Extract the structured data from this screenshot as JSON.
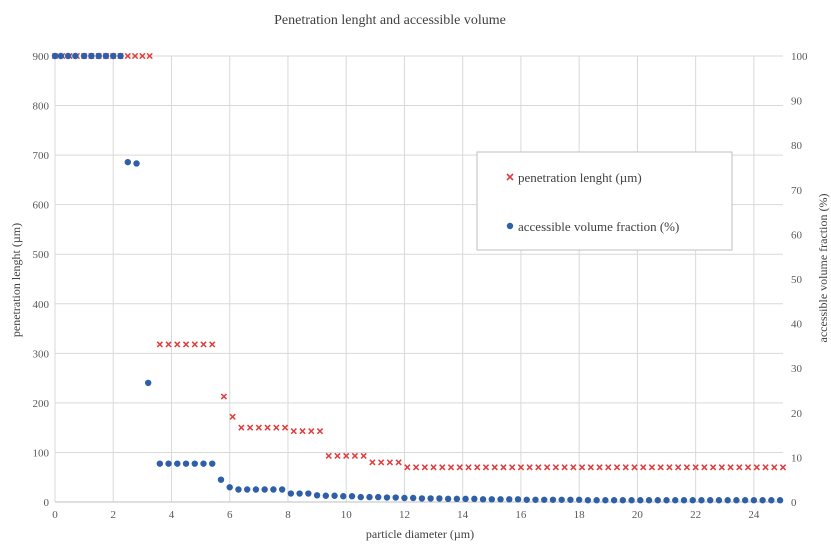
{
  "chart_data": {
    "type": "scatter",
    "title": "Penetration lenght and accessible volume",
    "xlabel": "particle diameter (µm)",
    "ylabel_left": "penetration lenght (µm)",
    "ylabel_right": "accessible volume fraction (%)",
    "xlim": [
      0,
      25
    ],
    "ylim_left": [
      0,
      900
    ],
    "ylim_right": [
      0,
      100
    ],
    "x_ticks": [
      0,
      2,
      4,
      6,
      8,
      10,
      12,
      14,
      16,
      18,
      20,
      22,
      24
    ],
    "y_left_ticks": [
      0,
      100,
      200,
      300,
      400,
      500,
      600,
      700,
      800,
      900
    ],
    "y_right_ticks": [
      0,
      10,
      20,
      30,
      40,
      50,
      60,
      70,
      80,
      90,
      100
    ],
    "grid": true,
    "legend_position": "upper-right",
    "series": [
      {
        "name": "penetration lenght (µm)",
        "marker": "x",
        "color": "#e03c3c",
        "axis": "left",
        "x": [
          0.0,
          0.25,
          0.5,
          0.75,
          1.0,
          1.25,
          1.5,
          1.75,
          2.0,
          2.25,
          2.5,
          2.75,
          3.0,
          3.25,
          3.6,
          3.9,
          4.2,
          4.5,
          4.8,
          5.1,
          5.4,
          5.8,
          6.1,
          6.4,
          6.7,
          7.0,
          7.3,
          7.6,
          7.9,
          8.2,
          8.5,
          8.8,
          9.1,
          9.4,
          9.7,
          10.0,
          10.3,
          10.6,
          10.9,
          11.2,
          11.5,
          11.8,
          12.1,
          12.4,
          12.7,
          13.0,
          13.3,
          13.6,
          13.9,
          14.2,
          14.5,
          14.8,
          15.1,
          15.4,
          15.7,
          16.0,
          16.3,
          16.6,
          16.9,
          17.2,
          17.5,
          17.8,
          18.1,
          18.4,
          18.7,
          19.0,
          19.3,
          19.6,
          19.9,
          20.2,
          20.5,
          20.8,
          21.1,
          21.4,
          21.7,
          22.0,
          22.3,
          22.6,
          22.9,
          23.2,
          23.5,
          23.8,
          24.1,
          24.4,
          24.7,
          25.0
        ],
        "y": [
          900,
          900,
          900,
          900,
          900,
          900,
          900,
          900,
          900,
          900,
          900,
          900,
          900,
          900,
          318,
          318,
          318,
          318,
          318,
          318,
          318,
          213,
          172,
          150,
          150,
          150,
          150,
          150,
          150,
          143,
          143,
          143,
          143,
          93,
          93,
          93,
          93,
          93,
          80,
          80,
          80,
          80,
          70,
          70,
          70,
          70,
          70,
          70,
          70,
          70,
          70,
          70,
          70,
          70,
          70,
          70,
          70,
          70,
          70,
          70,
          70,
          70,
          70,
          70,
          70,
          70,
          70,
          70,
          70,
          70,
          70,
          70,
          70,
          70,
          70,
          70,
          70,
          70,
          70,
          70,
          70,
          70,
          70,
          70,
          70,
          70
        ]
      },
      {
        "name": "accessible volume fraction (%)",
        "marker": "circle",
        "color": "#2e5fa8",
        "axis": "right",
        "x": [
          0.0,
          0.2,
          0.45,
          0.7,
          1.0,
          1.25,
          1.5,
          1.75,
          2.0,
          2.25,
          2.5,
          2.8,
          3.2,
          3.6,
          3.9,
          4.2,
          4.5,
          4.8,
          5.1,
          5.4,
          5.7,
          6.0,
          6.3,
          6.6,
          6.9,
          7.2,
          7.5,
          7.8,
          8.1,
          8.4,
          8.7,
          9.0,
          9.3,
          9.6,
          9.9,
          10.2,
          10.5,
          10.8,
          11.1,
          11.4,
          11.7,
          12.0,
          12.3,
          12.6,
          12.9,
          13.2,
          13.5,
          13.8,
          14.1,
          14.4,
          14.7,
          15.0,
          15.3,
          15.6,
          15.9,
          16.2,
          16.5,
          16.8,
          17.1,
          17.4,
          17.7,
          18.0,
          18.3,
          18.6,
          18.9,
          19.2,
          19.5,
          19.8,
          20.1,
          20.4,
          20.7,
          21.0,
          21.3,
          21.6,
          21.9,
          22.2,
          22.5,
          22.8,
          23.1,
          23.4,
          23.7,
          24.0,
          24.3,
          24.6,
          24.9
        ],
        "y": [
          100,
          100,
          100,
          100,
          100,
          100,
          100,
          100,
          100,
          100,
          76.2,
          75.9,
          26.7,
          8.6,
          8.6,
          8.6,
          8.6,
          8.6,
          8.6,
          8.6,
          5.0,
          3.3,
          2.8,
          2.8,
          2.8,
          2.8,
          2.8,
          2.8,
          1.9,
          1.9,
          1.9,
          1.5,
          1.4,
          1.4,
          1.3,
          1.3,
          1.1,
          1.1,
          1.1,
          1.0,
          1.0,
          0.9,
          0.9,
          0.8,
          0.8,
          0.8,
          0.7,
          0.7,
          0.7,
          0.7,
          0.6,
          0.6,
          0.6,
          0.6,
          0.6,
          0.5,
          0.5,
          0.5,
          0.5,
          0.5,
          0.5,
          0.5,
          0.4,
          0.4,
          0.4,
          0.4,
          0.4,
          0.4,
          0.4,
          0.4,
          0.4,
          0.4,
          0.4,
          0.4,
          0.4,
          0.4,
          0.4,
          0.4,
          0.4,
          0.4,
          0.4,
          0.4,
          0.4,
          0.4,
          0.4
        ]
      }
    ]
  }
}
